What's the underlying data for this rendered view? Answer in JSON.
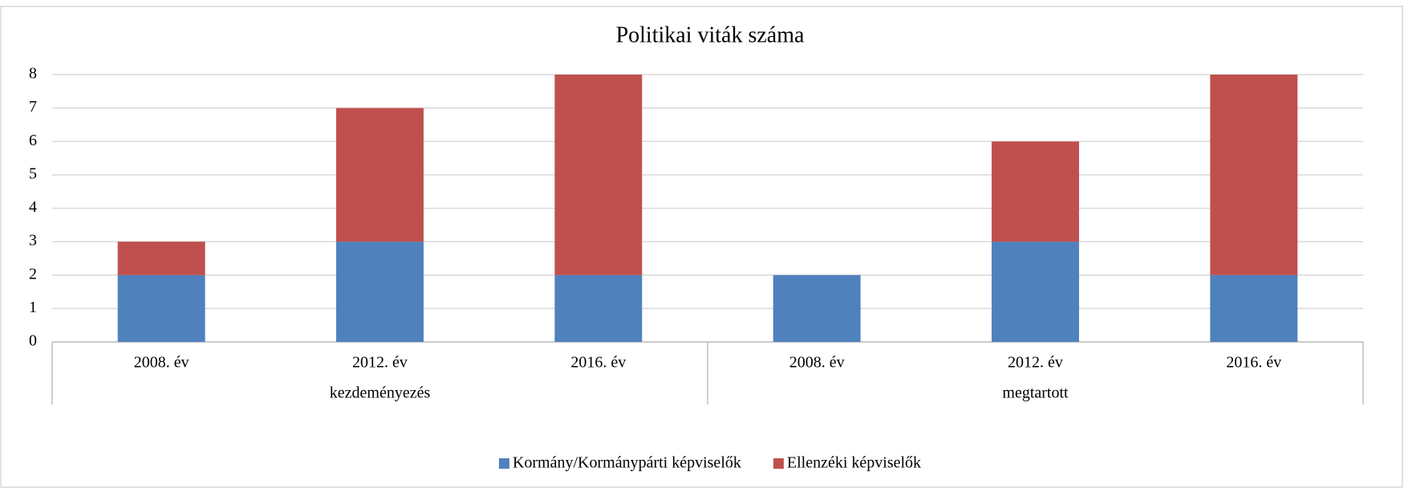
{
  "chart_data": {
    "type": "stacked_bar",
    "title": "Politikai viták száma",
    "categories": [
      "2008. év",
      "2012. év",
      "2016. év",
      "2008. év",
      "2012. év",
      "2016. év"
    ],
    "groups": [
      "kezdeményezés",
      "megtartott"
    ],
    "series": [
      {
        "name": "Kormány/Kormánypárti képviselők",
        "color": "#4f81bd",
        "values": [
          2,
          3,
          2,
          2,
          3,
          2
        ]
      },
      {
        "name": "Ellenzéki képviselők",
        "color": "#c0504d",
        "values": [
          1,
          4,
          6,
          0,
          3,
          6
        ]
      }
    ],
    "ylim": [
      0,
      8
    ],
    "yticks": [
      0,
      1,
      2,
      3,
      4,
      5,
      6,
      7,
      8
    ],
    "grid": true,
    "legend": "bottom"
  }
}
